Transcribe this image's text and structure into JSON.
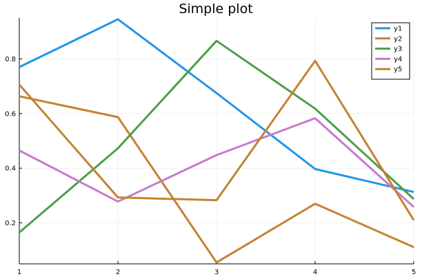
{
  "chart_data": {
    "type": "line",
    "title": "Simple plot",
    "xlabel": "",
    "ylabel": "",
    "x": [
      1,
      2,
      3,
      4,
      5
    ],
    "xlim": [
      1,
      5
    ],
    "ylim": [
      0.05,
      0.95
    ],
    "xticks": [
      1,
      2,
      3,
      4,
      5
    ],
    "yticks": [
      0.2,
      0.4,
      0.6,
      0.8
    ],
    "ytick_labels": [
      "0.2",
      "0.4",
      "0.6",
      "0.8"
    ],
    "grid": true,
    "legend_position": "top-right",
    "series": [
      {
        "name": "y1",
        "color": "#2196e8",
        "values": [
          0.77,
          0.945,
          0.675,
          0.397,
          0.313
        ]
      },
      {
        "name": "y2",
        "color": "#c4822f",
        "values": [
          0.663,
          0.587,
          0.055,
          0.27,
          0.111
        ]
      },
      {
        "name": "y3",
        "color": "#4a9e4a",
        "values": [
          0.165,
          0.473,
          0.866,
          0.618,
          0.287
        ]
      },
      {
        "name": "y4",
        "color": "#c77acb",
        "values": [
          0.465,
          0.278,
          0.448,
          0.583,
          0.258
        ]
      },
      {
        "name": "y5",
        "color": "#c4822f",
        "values": [
          0.706,
          0.293,
          0.283,
          0.793,
          0.21
        ]
      }
    ]
  }
}
